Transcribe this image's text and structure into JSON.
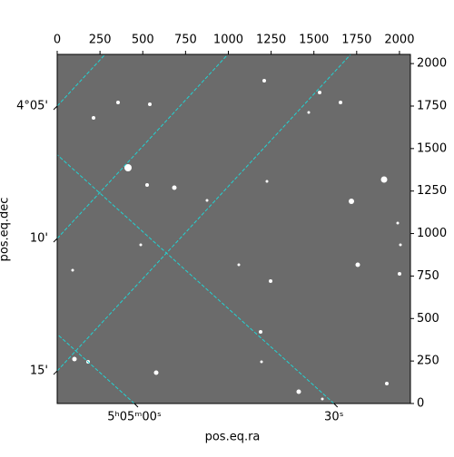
{
  "chart_data": {
    "type": "image",
    "x_label": "pos.eq.ra",
    "y_label": "pos.eq.dec",
    "xlim": [
      0,
      2064
    ],
    "xticks": [
      0,
      250,
      500,
      750,
      1000,
      1250,
      1500,
      1750,
      2000
    ],
    "ylim": [
      0,
      2054
    ],
    "yticks": [
      0,
      250,
      500,
      750,
      1000,
      1250,
      1500,
      1750,
      2000
    ],
    "ra_lim": [
      18288.4,
      18341.5
    ],
    "ra_ticks": [
      {
        "value": 18300,
        "label": "5ʰ05ᵐ00ˢ"
      },
      {
        "value": 18330,
        "label": "30ˢ"
      }
    ],
    "dec_lim": [
      243.05,
      256.23
    ],
    "dec_ticks": [
      {
        "value": 245,
        "label": "4°05'"
      },
      {
        "value": 250,
        "label": "10'"
      },
      {
        "value": 255,
        "label": "15'"
      }
    ],
    "grid": true,
    "grid_color": "#22d3d3"
  }
}
